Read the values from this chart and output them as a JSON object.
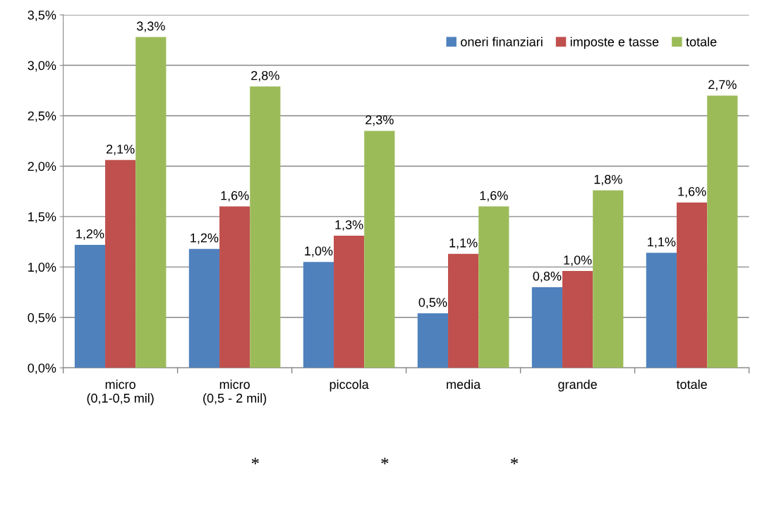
{
  "chart_data": {
    "type": "bar",
    "categories": [
      "micro\n(0,1-0,5 mil)",
      "micro\n(0,5 - 2 mil)",
      "piccola",
      "media",
      "grande",
      "totale"
    ],
    "series": [
      {
        "name": "oneri finanziari",
        "color": "#4f81bd",
        "values": [
          1.22,
          1.18,
          1.05,
          0.54,
          0.8,
          1.14
        ],
        "value_labels": [
          "1,2%",
          "1,2%",
          "1,0%",
          "0,5%",
          "0,8%",
          "1,1%"
        ]
      },
      {
        "name": "imposte e tasse",
        "color": "#c0504d",
        "values": [
          2.06,
          1.6,
          1.31,
          1.13,
          0.96,
          1.64
        ],
        "value_labels": [
          "2,1%",
          "1,6%",
          "1,3%",
          "1,1%",
          "1,0%",
          "1,6%"
        ]
      },
      {
        "name": "totale",
        "color": "#9bbb59",
        "values": [
          3.28,
          2.79,
          2.35,
          1.6,
          1.76,
          2.7
        ],
        "value_labels": [
          "3,3%",
          "2,8%",
          "2,3%",
          "1,6%",
          "1,8%",
          "2,7%"
        ]
      }
    ],
    "ylim": [
      0,
      3.5
    ],
    "yticks": [
      {
        "value": 0,
        "label": "0,0%"
      },
      {
        "value": 0.5,
        "label": "0,5%"
      },
      {
        "value": 1,
        "label": "1,0%"
      },
      {
        "value": 1.5,
        "label": "1,5%"
      },
      {
        "value": 2,
        "label": "2,0%"
      },
      {
        "value": 2.5,
        "label": "2,5%"
      },
      {
        "value": 3,
        "label": "3,0%"
      },
      {
        "value": 3.5,
        "label": "3,5%"
      }
    ],
    "grid": "y",
    "legend": "top right",
    "annotations": [
      "*",
      "*",
      "*"
    ]
  }
}
